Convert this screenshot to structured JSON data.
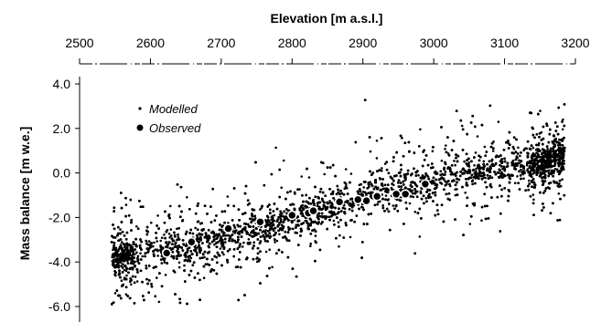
{
  "chart_data": {
    "type": "scatter",
    "title": "",
    "xlabel": "Elevation [m a.s.l.]",
    "ylabel": "Mass balance [m w.e.]",
    "xlim": [
      2500,
      3200
    ],
    "ylim": [
      -6.0,
      4.0
    ],
    "x_ticks": [
      2500,
      2600,
      2700,
      2800,
      2900,
      3000,
      3100,
      3200
    ],
    "x_tick_labels": [
      "2500",
      "2600",
      "2700",
      "2800",
      "2900",
      "3000",
      "3100",
      "3200"
    ],
    "y_ticks": [
      4.0,
      2.0,
      0.0,
      -2.0,
      -4.0,
      -6.0
    ],
    "y_tick_labels": [
      "4.0",
      "2.0",
      "0.0",
      "-2.0",
      "-4.0",
      "-6.0"
    ],
    "x_axis_position": "top",
    "grid": false,
    "legend_position": "top-left",
    "series": [
      {
        "name": "Modelled",
        "marker": "small-dot",
        "color": "#000000",
        "trend": {
          "x": [
            2545,
            2650,
            2750,
            2850,
            2950,
            3050,
            3150,
            3185
          ],
          "y": [
            -3.8,
            -3.3,
            -2.5,
            -1.6,
            -0.7,
            0.0,
            0.4,
            0.8
          ]
        },
        "spread": 1.1,
        "point_count": 9000
      },
      {
        "name": "Observed",
        "marker": "open-circle",
        "color": "#ffffff",
        "x": [
          2623,
          2658,
          2710,
          2755,
          2800,
          2823,
          2830,
          2867,
          2893,
          2905,
          2920,
          2947,
          2960,
          2988
        ],
        "y": [
          -3.6,
          -3.1,
          -2.5,
          -2.2,
          -1.9,
          -1.8,
          -1.7,
          -1.3,
          -1.2,
          -1.25,
          -1.05,
          -0.95,
          -0.95,
          -0.5
        ]
      }
    ]
  }
}
